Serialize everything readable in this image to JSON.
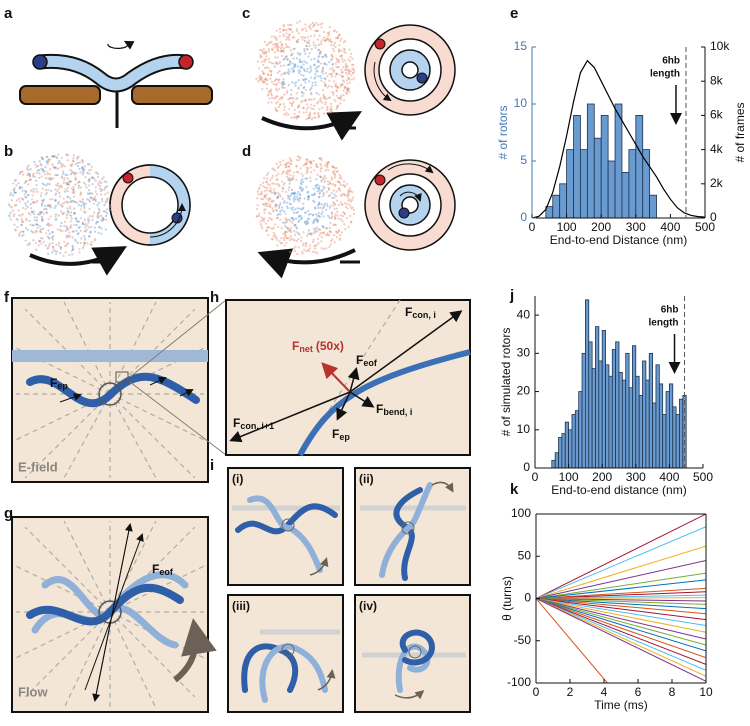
{
  "panel_labels": [
    "a",
    "b",
    "c",
    "d",
    "e",
    "f",
    "g",
    "h",
    "i",
    "j",
    "k"
  ],
  "diagrams": {
    "f": {
      "fep": {
        "main": "F",
        "sub": "ep"
      },
      "field": "E-field"
    },
    "g": {
      "feof": {
        "main": "F",
        "sub": "eof"
      },
      "flow": "Flow"
    },
    "h": {
      "fcon_i": {
        "main": "F",
        "sub": "con, i"
      },
      "fnet": {
        "main": "F",
        "sub": "net",
        "suffix": "(50x)"
      },
      "feof": {
        "main": "F",
        "sub": "eof"
      },
      "fbend": {
        "main": "F",
        "sub": "bend, i"
      },
      "fcon_i1": {
        "main": "F",
        "sub": "con, i+1"
      },
      "fep": {
        "main": "F",
        "sub": "ep"
      }
    },
    "i": [
      "(i)",
      "(ii)",
      "(iii)",
      "(iv)"
    ]
  },
  "chart_data": [
    {
      "type": "histogram",
      "xlabel": "End-to-end Distance (nm)",
      "ylabel": "# of rotors",
      "ylabel_color": "#3f78b5",
      "y2label": "# of frames",
      "bins": [
        40,
        60,
        80,
        100,
        120,
        140,
        160,
        180,
        200,
        220,
        240,
        260,
        280,
        300,
        320,
        340,
        360
      ],
      "values": [
        1,
        2,
        3,
        6,
        9,
        6,
        10,
        7,
        9,
        5,
        10,
        4,
        6,
        9,
        6,
        2
      ],
      "color": "#6a9bd0",
      "series": [
        {
          "axis": "y2",
          "color": "#000000",
          "x": [
            0,
            20,
            40,
            60,
            80,
            100,
            120,
            140,
            160,
            180,
            200,
            220,
            240,
            260,
            280,
            300,
            320,
            340,
            360,
            380,
            400,
            420,
            440,
            460,
            480,
            500
          ],
          "values": [
            0,
            100,
            500,
            1500,
            3000,
            4800,
            6800,
            8500,
            9200,
            8800,
            8000,
            7200,
            6400,
            5700,
            5000,
            4300,
            3600,
            3000,
            2400,
            1700,
            1100,
            600,
            300,
            150,
            80,
            50
          ]
        }
      ],
      "xlim": [
        0,
        500
      ],
      "xticks": [
        0,
        100,
        200,
        300,
        400,
        500
      ],
      "ylim": [
        0,
        15
      ],
      "yticks": [
        0,
        5,
        10,
        15
      ],
      "y2lim": [
        0,
        10000
      ],
      "y2ticks": [
        0,
        {
          "value": 2000,
          "label": "2k"
        },
        {
          "value": 4000,
          "label": "4k"
        },
        {
          "value": 6000,
          "label": "6k"
        },
        {
          "value": 8000,
          "label": "8k"
        },
        {
          "value": 10000,
          "label": "10k"
        }
      ],
      "annotation": {
        "x": 445,
        "text": [
          "6hb",
          "length"
        ]
      }
    },
    {
      "type": "histogram",
      "xlabel": "End-to-end distance (nm)",
      "ylabel": "# of simulated rotors",
      "bins": [
        50,
        60,
        70,
        80,
        90,
        100,
        110,
        120,
        130,
        140,
        150,
        160,
        170,
        180,
        190,
        200,
        210,
        220,
        230,
        240,
        250,
        260,
        270,
        280,
        290,
        300,
        310,
        320,
        330,
        340,
        350,
        360,
        370,
        380,
        390,
        400,
        410,
        420,
        430,
        440,
        450
      ],
      "values": [
        2,
        4,
        8,
        9,
        12,
        10,
        14,
        15,
        20,
        30,
        44,
        33,
        26,
        37,
        28,
        36,
        27,
        24,
        31,
        33,
        25,
        23,
        30,
        21,
        32,
        24,
        19,
        28,
        23,
        30,
        17,
        27,
        22,
        14,
        20,
        22,
        16,
        14,
        18,
        19
      ],
      "color": "#6a9bd0",
      "xlim": [
        0,
        500
      ],
      "xticks": [
        0,
        100,
        200,
        300,
        400,
        500
      ],
      "ylim": [
        0,
        45
      ],
      "yticks": [
        0,
        10,
        20,
        30,
        40
      ],
      "annotation": {
        "x": 445,
        "text": [
          "6hb",
          "length"
        ]
      }
    },
    {
      "type": "line",
      "xlabel": "Time (ms)",
      "ylabel": "θ (turns)",
      "x": [
        0,
        10
      ],
      "xlim": [
        0,
        10
      ],
      "xticks": [
        0,
        2,
        4,
        6,
        8,
        10
      ],
      "ylim": [
        -100,
        100
      ],
      "yticks": [
        -100,
        -50,
        0,
        50,
        100
      ],
      "series": [
        {
          "color": "#a2142f",
          "values": [
            0,
            100
          ]
        },
        {
          "color": "#4dbeee",
          "values": [
            0,
            85
          ]
        },
        {
          "color": "#edb120",
          "values": [
            0,
            62
          ]
        },
        {
          "color": "#7e2f8e",
          "values": [
            0,
            45
          ]
        },
        {
          "color": "#77ac30",
          "values": [
            0,
            30
          ]
        },
        {
          "color": "#0072bd",
          "values": [
            0,
            22
          ]
        },
        {
          "color": "#d95319",
          "values": [
            0,
            12
          ]
        },
        {
          "color": "#a2142f",
          "values": [
            0,
            8
          ]
        },
        {
          "color": "#4dbeee",
          "values": [
            0,
            4
          ]
        },
        {
          "color": "#edb120",
          "values": [
            0,
            1
          ]
        },
        {
          "color": "#7e2f8e",
          "values": [
            0,
            -3
          ]
        },
        {
          "color": "#77ac30",
          "values": [
            0,
            -7
          ]
        },
        {
          "color": "#0072bd",
          "values": [
            0,
            -12
          ]
        },
        {
          "color": "#d95319",
          "values": [
            0,
            -18
          ]
        },
        {
          "color": "#a2142f",
          "values": [
            0,
            -25
          ]
        },
        {
          "color": "#4dbeee",
          "values": [
            0,
            -32
          ]
        },
        {
          "color": "#edb120",
          "values": [
            0,
            -40
          ]
        },
        {
          "color": "#7e2f8e",
          "values": [
            0,
            -48
          ]
        },
        {
          "color": "#77ac30",
          "values": [
            0,
            -55
          ]
        },
        {
          "color": "#0072bd",
          "values": [
            0,
            -62
          ]
        },
        {
          "color": "#d95319",
          "values": [
            0,
            -70
          ]
        },
        {
          "color": "#a2142f",
          "values": [
            0,
            -78
          ]
        },
        {
          "color": "#4dbeee",
          "values": [
            0,
            -85
          ]
        },
        {
          "color": "#edb120",
          "values": [
            0,
            -92
          ]
        },
        {
          "color": "#7e2f8e",
          "values": [
            0,
            -98
          ]
        },
        {
          "color": "#d95319",
          "x": [
            0,
            4.2
          ],
          "values": [
            0,
            -100
          ]
        }
      ]
    }
  ]
}
